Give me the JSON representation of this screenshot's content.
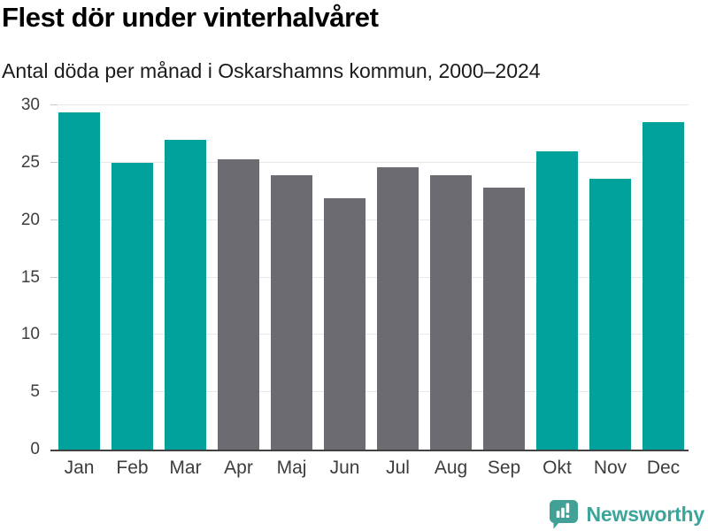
{
  "header": {
    "title": "Flest dör under vinterhalvåret",
    "subtitle": "Antal döda per månad i Oskarshamns kommun, 2000–2024"
  },
  "chart_data": {
    "type": "bar",
    "title": "Flest dör under vinterhalvåret",
    "subtitle": "Antal döda per månad i Oskarshamns kommun, 2000–2024",
    "categories": [
      "Jan",
      "Feb",
      "Mar",
      "Apr",
      "Maj",
      "Jun",
      "Jul",
      "Aug",
      "Sep",
      "Okt",
      "Nov",
      "Dec"
    ],
    "values": [
      29.4,
      25.0,
      27.0,
      25.3,
      23.9,
      21.9,
      24.6,
      23.9,
      22.8,
      26.0,
      23.6,
      28.5
    ],
    "highlighted": [
      true,
      true,
      true,
      false,
      false,
      false,
      false,
      false,
      false,
      true,
      true,
      true
    ],
    "highlight_color": "#00a29b",
    "base_color": "#6d6b72",
    "xlabel": "",
    "ylabel": "",
    "ylim": [
      0,
      30
    ],
    "yticks": [
      0,
      5,
      10,
      15,
      20,
      25,
      30
    ],
    "grid": true,
    "legend_position": "none"
  },
  "footer": {
    "brand": "Newsworthy"
  },
  "colors": {
    "highlight": "#00a29b",
    "muted": "#6d6b72",
    "brand": "#3ba59b",
    "brand_bubble": "#42a096",
    "axis_line": "#424242",
    "grid_line": "#e8e8e8",
    "tick": "#c6c6c6",
    "axis_label": "#3d3d3d",
    "title": "#000000",
    "subtitle": "#1b1b1b",
    "background": "#ffffff"
  }
}
